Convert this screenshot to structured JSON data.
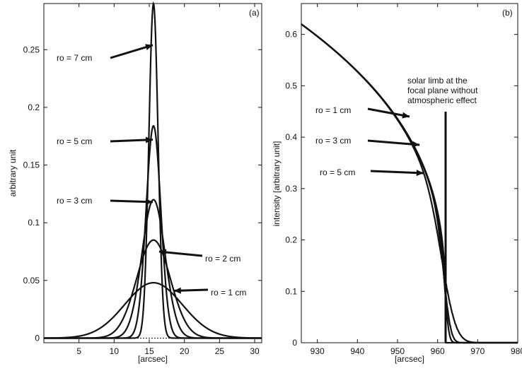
{
  "chart_data": [
    {
      "type": "line",
      "panel_label": "(a)",
      "xlabel": "[arcsec]",
      "ylabel": "arbitrary unit",
      "xlim": [
        0,
        31
      ],
      "ylim": [
        -0.004,
        0.29
      ],
      "xticks": [
        5,
        10,
        15,
        20,
        25,
        30
      ],
      "yticks": [
        0,
        0.05,
        0.1,
        0.15,
        0.2,
        0.25
      ],
      "ytick_labels": [
        "0",
        "0.05",
        "0.1",
        "0.15",
        "0.2",
        "0.25"
      ],
      "grid": false,
      "series": [
        {
          "name": "ro = 1 cm",
          "peak_x": 15.6,
          "peak": 0.048,
          "sigma": 4.1,
          "x": [
            0,
            4,
            8,
            10,
            12,
            14,
            15.6,
            17,
            19,
            21,
            23,
            27,
            31
          ],
          "y": [
            0.0004,
            0.005,
            0.018,
            0.028,
            0.038,
            0.046,
            0.048,
            0.046,
            0.037,
            0.025,
            0.015,
            0.003,
            0.0003
          ]
        },
        {
          "name": "ro = 2 cm",
          "peak_x": 15.6,
          "peak": 0.085,
          "sigma": 2.4,
          "x": [
            0,
            8,
            10,
            12,
            14,
            15.6,
            17,
            19,
            21,
            25,
            31
          ],
          "y": [
            0.0,
            0.005,
            0.018,
            0.05,
            0.078,
            0.085,
            0.079,
            0.05,
            0.018,
            0.001,
            0.0
          ]
        },
        {
          "name": "ro = 3 cm",
          "peak_x": 15.6,
          "peak": 0.12,
          "sigma": 1.65,
          "x": [
            0,
            10,
            12,
            14,
            15.6,
            17,
            19,
            21,
            31
          ],
          "y": [
            0.0,
            0.004,
            0.04,
            0.1,
            0.12,
            0.104,
            0.04,
            0.004,
            0.0
          ]
        },
        {
          "name": "ro = 5 cm",
          "peak_x": 15.6,
          "peak": 0.184,
          "sigma": 1.05,
          "x": [
            0,
            12,
            14,
            15.6,
            17,
            19,
            31
          ],
          "y": [
            0.0,
            0.015,
            0.12,
            0.184,
            0.075,
            0.003,
            0.0
          ]
        },
        {
          "name": "ro = 7 cm",
          "peak_x": 15.6,
          "peak": 0.29,
          "sigma": 0.65,
          "x": [
            0,
            13,
            14.5,
            15.6,
            16.6,
            18,
            31
          ],
          "y": [
            0.0,
            0.005,
            0.07,
            0.29,
            0.09,
            0.002,
            0.0
          ]
        }
      ],
      "annotations": [
        {
          "text": "ro = 7 cm",
          "arrow_to": [
            15.5,
            0.254
          ]
        },
        {
          "text": "ro = 5 cm",
          "arrow_to": [
            15.5,
            0.172
          ]
        },
        {
          "text": "ro = 3 cm",
          "arrow_to": [
            15.5,
            0.118
          ]
        },
        {
          "text": "ro = 2 cm",
          "arrow_to": [
            16.4,
            0.075
          ]
        },
        {
          "text": "ro = 1 cm",
          "arrow_to": [
            18.5,
            0.041
          ]
        }
      ]
    },
    {
      "type": "line",
      "panel_label": "(b)",
      "xlabel": "[arcsec]",
      "ylabel": "intensity [arbitrary unit]",
      "xlim": [
        926,
        980
      ],
      "ylim": [
        0,
        0.66
      ],
      "xticks": [
        930,
        940,
        950,
        960,
        970,
        980
      ],
      "yticks": [
        0,
        0.1,
        0.2,
        0.3,
        0.4,
        0.5,
        0.6
      ],
      "ytick_labels": [
        "0",
        "0.1",
        "0.2",
        "0.3",
        "0.4",
        "0.5",
        "0.6"
      ],
      "grid": false,
      "limb_position": 962,
      "series": [
        {
          "name": "solar limb at the focal plane without atmospheric effect",
          "blur": 0,
          "x": [
            926,
            930,
            940,
            950,
            955,
            960,
            962,
            962,
            980
          ],
          "y": [
            0.62,
            0.605,
            0.548,
            0.45,
            0.37,
            0.22,
            0.07,
            0.0,
            0.0
          ]
        },
        {
          "name": "ro = 5 cm",
          "blur": 0.8,
          "x": [
            926,
            940,
            950,
            955,
            958,
            960,
            961,
            962,
            963,
            964,
            966
          ],
          "y": [
            0.62,
            0.548,
            0.45,
            0.36,
            0.27,
            0.16,
            0.08,
            0.03,
            0.01,
            0.0,
            0.0
          ]
        },
        {
          "name": "ro = 3 cm",
          "blur": 1.3,
          "x": [
            926,
            940,
            950,
            955,
            958,
            960,
            961,
            962,
            963,
            965,
            968
          ],
          "y": [
            0.62,
            0.548,
            0.45,
            0.355,
            0.26,
            0.15,
            0.09,
            0.04,
            0.02,
            0.004,
            0.0
          ]
        },
        {
          "name": "ro = 1 cm",
          "blur": 2.6,
          "x": [
            926,
            940,
            950,
            955,
            958,
            960,
            962,
            964,
            966,
            970,
            976
          ],
          "y": [
            0.62,
            0.548,
            0.448,
            0.35,
            0.255,
            0.17,
            0.085,
            0.04,
            0.018,
            0.003,
            0.0
          ]
        }
      ],
      "annotations": [
        {
          "text": "ro = 1 cm",
          "arrow_to": [
            953,
            0.44
          ]
        },
        {
          "text": "ro = 3 cm",
          "arrow_to": [
            955.5,
            0.385
          ]
        },
        {
          "text": "ro = 5 cm",
          "arrow_to": [
            956.5,
            0.33
          ]
        },
        {
          "text_lines": [
            "solar limb at the",
            "focal plane without",
            "atmospheric effect"
          ],
          "arrow_to": [
            962,
            0.0
          ]
        }
      ]
    }
  ]
}
